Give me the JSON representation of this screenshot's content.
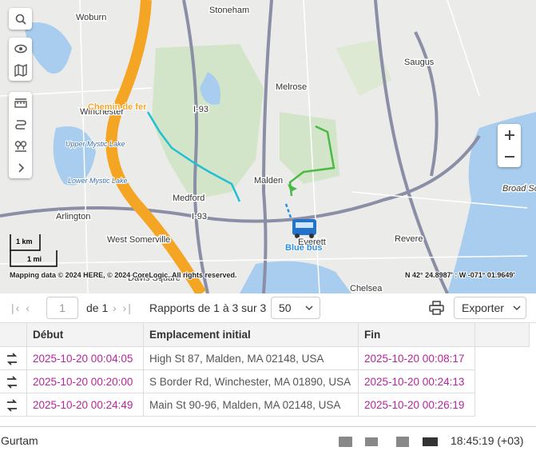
{
  "map": {
    "labels": [
      "Woburn",
      "Stoneham",
      "Saugus",
      "Melrose",
      "Winchester",
      "Medford",
      "Malden",
      "Arlington",
      "West Somerville",
      "Everett",
      "Revere",
      "Broad Sound",
      "Chelsea",
      "Davis Square",
      "I-93",
      "I-93"
    ],
    "lakes": [
      "Upper Mystic Lake",
      "Lower Mystic Lake"
    ],
    "route_label": "Chemin de fer",
    "vehicle": "Blue bus",
    "scale": {
      "km": "1 km",
      "mi": "1 mi"
    },
    "attribution": "Mapping data © 2024 HERE, © 2024 CoreLogic. All rights reserved.",
    "coordinates": "N 42° 24.8987' : W -071° 01.9649'"
  },
  "pagination": {
    "page": "1",
    "of": "de 1",
    "summary": "Rapports de 1 à 3 sur 3",
    "per_page": "50",
    "export": "Exporter"
  },
  "table": {
    "columns": [
      "Début",
      "Emplacement initial",
      "Fin"
    ],
    "rows": [
      [
        "2025-10-20 00:04:05",
        "High St 87, Malden, MA 02148, USA",
        "2025-10-20 00:08:17"
      ],
      [
        "2025-10-20 00:20:00",
        "S Border Rd, Winchester, MA 01890, USA",
        "2025-10-20 00:24:13"
      ],
      [
        "2025-10-20 00:24:49",
        "Main St 90-96, Malden, MA 02148, USA",
        "2025-10-20 00:26:19"
      ]
    ]
  },
  "status_bar": {
    "brand": "Gurtam",
    "time": "18:45:19 (+03)"
  }
}
